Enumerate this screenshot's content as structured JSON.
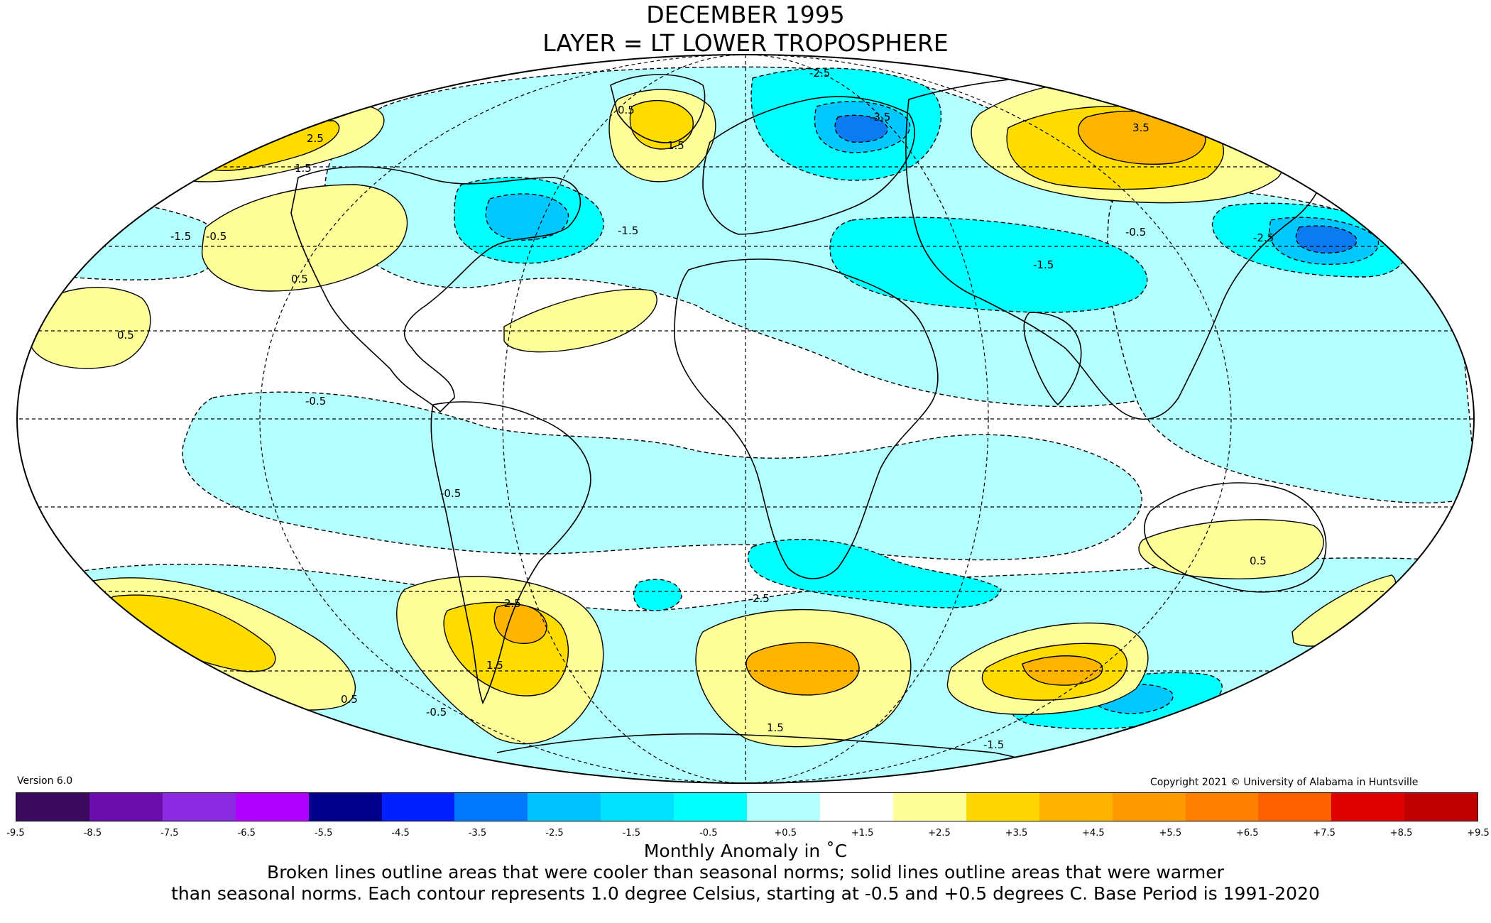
{
  "header": {
    "title_line1": "DECEMBER 1995",
    "title_line2": "LAYER = LT LOWER TROPOSPHERE"
  },
  "footer": {
    "version": "Version 6.0",
    "copyright": "Copyright 2021 © University of Alabama in Huntsville",
    "legend_title": "Monthly Anomaly in ˚C",
    "caption_line1": "Broken lines outline areas that were cooler than seasonal norms; solid lines outline areas that were warmer",
    "caption_line2": "than seasonal norms. Each contour represents 1.0 degree Celsius, starting at -0.5 and +0.5 degrees C. Base Period is 1991-2020"
  },
  "colorbar": {
    "ticks": [
      "-9.5",
      "-8.5",
      "-7.5",
      "-6.5",
      "-5.5",
      "-4.5",
      "-3.5",
      "-2.5",
      "-1.5",
      "-0.5",
      "+0.5",
      "+1.5",
      "+2.5",
      "+3.5",
      "+4.5",
      "+5.5",
      "+6.5",
      "+7.5",
      "+8.5",
      "+9.5"
    ],
    "colors": [
      "#3a0a5e",
      "#6a0dad",
      "#8a2be2",
      "#b000ff",
      "#00008b",
      "#0020ff",
      "#0078ff",
      "#00c2ff",
      "#00e0ff",
      "#00ffff",
      "#b4ffff",
      "#ffffff",
      "#ffff99",
      "#ffd700",
      "#ffb300",
      "#ff9900",
      "#ff8000",
      "#ff6000",
      "#e00000",
      "#c00000"
    ]
  },
  "palette": {
    "cool_1": "#b4ffff",
    "cool_2": "#00ffff",
    "cool_3": "#00c8ff",
    "cool_4": "#0a7bf0",
    "warm_1": "#ffff99",
    "warm_2": "#ffdc00",
    "warm_3": "#ffb400"
  },
  "contour_labels": [
    "2.5",
    "1.5",
    "0.5",
    "-0.5",
    "-1.5",
    "-2.5",
    "-3.5",
    "3.5",
    "1.5",
    "0.5",
    "-1.5",
    "-0.5",
    "-2.5",
    "2.5",
    "1.5",
    "0.5",
    "-1.5",
    "-0.5",
    "2.5",
    "1.5",
    "0.5",
    "-0.5",
    "-1.5",
    "0.5",
    "-0.5"
  ]
}
